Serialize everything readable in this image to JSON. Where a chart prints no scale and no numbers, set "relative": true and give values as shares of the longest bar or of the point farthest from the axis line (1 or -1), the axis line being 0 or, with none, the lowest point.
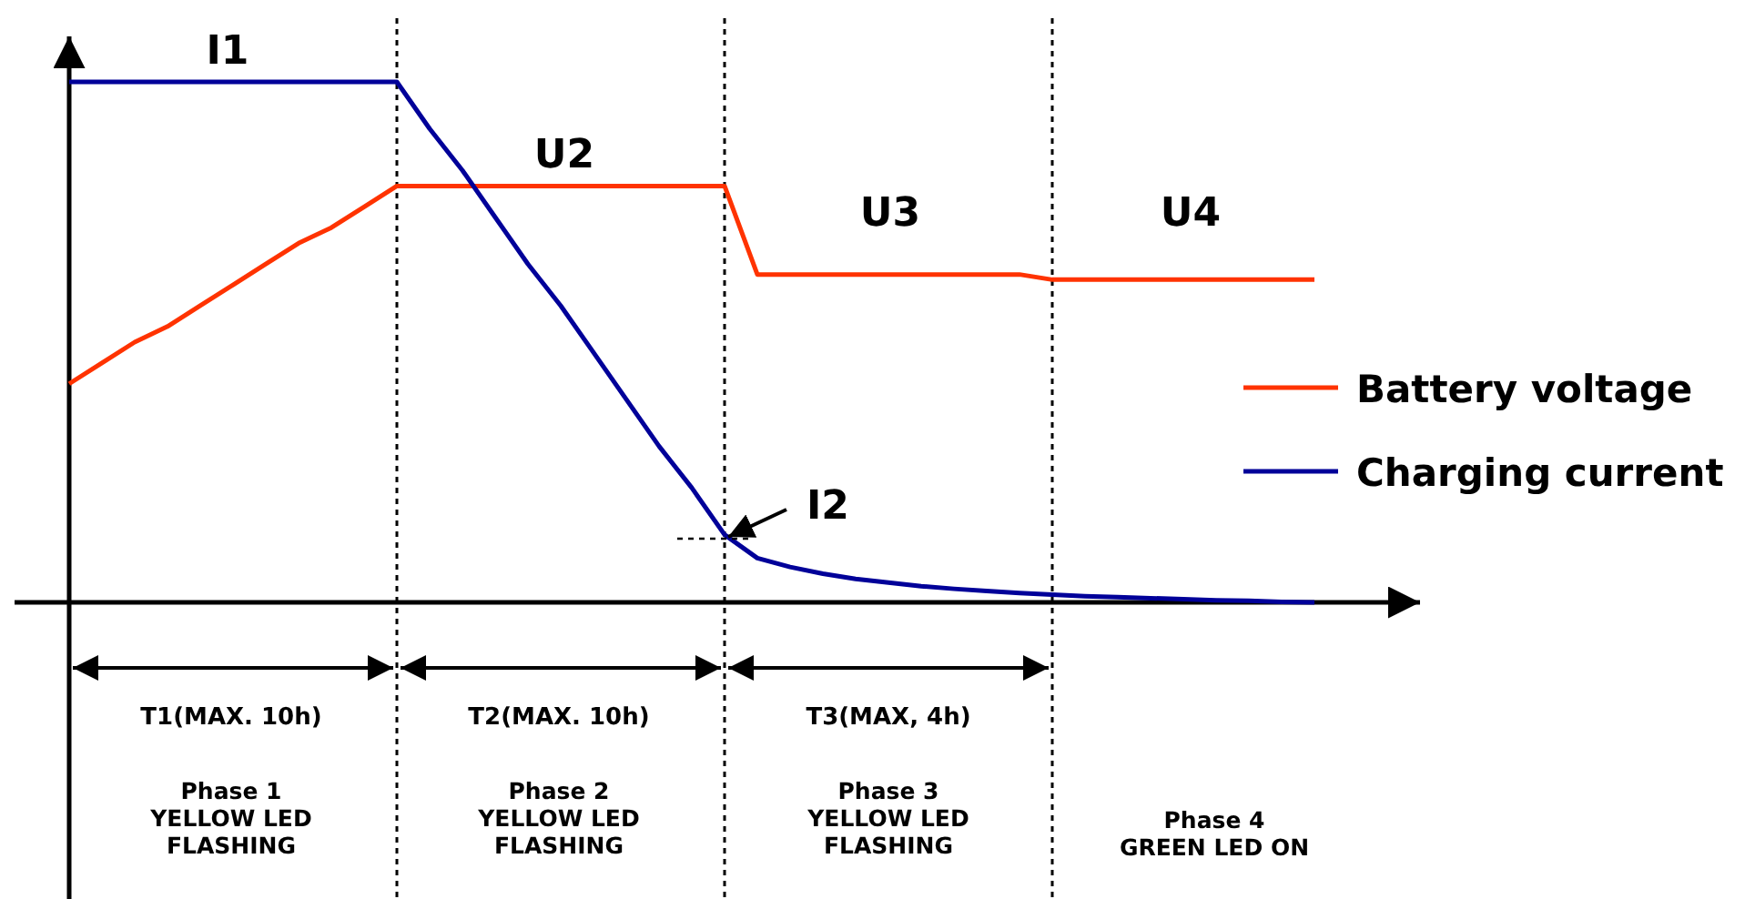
{
  "chart_data": {
    "type": "line",
    "relative": true,
    "legend": "right",
    "line_style": "solid",
    "grid": "x",
    "categories": [
      null,
      null,
      null,
      null,
      null,
      null,
      null,
      null,
      null,
      null,
      null,
      null,
      null,
      null,
      null,
      null,
      null,
      null,
      null,
      null,
      null,
      null,
      null,
      null,
      null,
      null,
      null,
      null,
      null,
      null,
      null,
      null,
      null,
      null,
      null,
      null,
      null,
      null,
      null
    ],
    "series": [
      {
        "name": "Battery voltage",
        "color": "#ff3300",
        "values": [
          0.42,
          0.46,
          0.5,
          0.53,
          0.57,
          0.61,
          0.65,
          0.69,
          0.72,
          0.76,
          0.8,
          0.8,
          0.8,
          0.8,
          0.8,
          0.8,
          0.8,
          0.8,
          0.8,
          0.8,
          0.8,
          0.63,
          0.63,
          0.63,
          0.63,
          0.63,
          0.63,
          0.63,
          0.63,
          0.63,
          0.62,
          0.62,
          0.62,
          0.62,
          0.62,
          0.62,
          0.62,
          0.62,
          0.62
        ]
      },
      {
        "name": "Charging current",
        "color": "#000099",
        "values": [
          1,
          1,
          1,
          1,
          1,
          1,
          1,
          1,
          1,
          1,
          1,
          0.91,
          0.83,
          0.74,
          0.65,
          0.57,
          0.48,
          0.39,
          0.3,
          0.22,
          0.13,
          0.085,
          0.068,
          0.055,
          0.045,
          0.038,
          0.031,
          0.026,
          0.022,
          0.018,
          0.015,
          0.012,
          0.01,
          0.008,
          0.006,
          0.004,
          0.003,
          0.001,
          0
        ]
      }
    ],
    "annotations": [
      "I1",
      "U2",
      "U3",
      "U4",
      "I2",
      "T1(MAX. 10h)",
      "T2(MAX. 10h)",
      "T3(MAX, 4h)",
      "Phase 1\nYELLOW LED\nFLASHING",
      "Phase 2\nYELLOW LED\nFLASHING",
      "Phase 3\nYELLOW LED\nFLASHING",
      "Phase 4\nGREEN LED ON"
    ]
  }
}
